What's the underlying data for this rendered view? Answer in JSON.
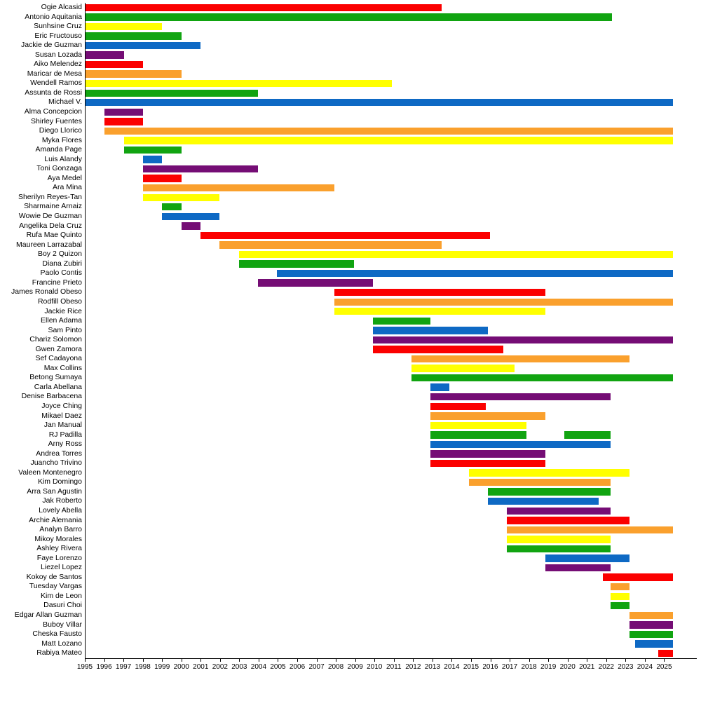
{
  "chart_data": {
    "type": "bar",
    "subtype": "timeline_gantt",
    "title": "",
    "xlabel": "",
    "ylabel": "",
    "grid": false,
    "legend": "none",
    "domain": [
      1995,
      2026.69
    ],
    "present_end": 2025.65,
    "year_ticks": [
      1995,
      1996,
      1997,
      1998,
      1999,
      2000,
      2001,
      2002,
      2003,
      2004,
      2005,
      2006,
      2007,
      2008,
      2009,
      2010,
      2011,
      2012,
      2013,
      2014,
      2015,
      2016,
      2017,
      2018,
      2019,
      2020,
      2021,
      2022,
      2023,
      2024,
      2025
    ],
    "colors": {
      "red": "#FB0000",
      "orange": "#FAA02D",
      "yellow": "#FFFF00",
      "green": "#11A411",
      "blue": "#0E69C4",
      "purple": "#750D75"
    },
    "members": [
      {
        "name": "Ogie Alcasid",
        "color": "red",
        "segments": [
          [
            1995,
            2013.6
          ]
        ]
      },
      {
        "name": "Antonio Aquitania",
        "color": "green",
        "segments": [
          [
            1995,
            2022.5
          ]
        ]
      },
      {
        "name": "Sunhsine Cruz",
        "color": "yellow",
        "segments": [
          [
            1995,
            1999
          ]
        ]
      },
      {
        "name": "Eric Fructouso",
        "color": "green",
        "segments": [
          [
            1995,
            2000
          ]
        ]
      },
      {
        "name": "Jackie de Guzman",
        "color": "blue",
        "segments": [
          [
            1995,
            2001
          ]
        ]
      },
      {
        "name": "Susan Lozada",
        "color": "purple",
        "segments": [
          [
            1995,
            1997
          ]
        ]
      },
      {
        "name": "Aiko Melendez",
        "color": "red",
        "segments": [
          [
            1995,
            1998
          ]
        ]
      },
      {
        "name": "Maricar de Mesa",
        "color": "orange",
        "segments": [
          [
            1995,
            2000
          ]
        ]
      },
      {
        "name": "Wendell Ramos",
        "color": "yellow",
        "segments": [
          [
            1995,
            2011
          ]
        ]
      },
      {
        "name": "Assunta de Rossi",
        "color": "green",
        "segments": [
          [
            1995,
            2004
          ]
        ]
      },
      {
        "name": "Michael V.",
        "color": "blue",
        "segments": [
          [
            1995,
            "present"
          ]
        ]
      },
      {
        "name": "Alma Concepcion",
        "color": "purple",
        "segments": [
          [
            1996,
            1998
          ]
        ]
      },
      {
        "name": "Shirley Fuentes",
        "color": "red",
        "segments": [
          [
            1996,
            1998
          ]
        ]
      },
      {
        "name": "Diego Llorico",
        "color": "orange",
        "segments": [
          [
            1996,
            "present"
          ]
        ]
      },
      {
        "name": "Myka Flores",
        "color": "yellow",
        "segments": [
          [
            1997,
            "present"
          ]
        ]
      },
      {
        "name": "Amanda Page",
        "color": "green",
        "segments": [
          [
            1997,
            2000
          ]
        ]
      },
      {
        "name": "Luis Alandy",
        "color": "blue",
        "segments": [
          [
            1998,
            1999
          ]
        ]
      },
      {
        "name": "Toni Gonzaga",
        "color": "purple",
        "segments": [
          [
            1998,
            2004
          ]
        ]
      },
      {
        "name": "Aya Medel",
        "color": "red",
        "segments": [
          [
            1998,
            2000
          ]
        ]
      },
      {
        "name": "Ara Mina",
        "color": "orange",
        "segments": [
          [
            1998,
            2008
          ]
        ]
      },
      {
        "name": "Sherilyn Reyes-Tan",
        "color": "yellow",
        "segments": [
          [
            1998,
            2002
          ]
        ]
      },
      {
        "name": "Sharmaine Arnaiz",
        "color": "green",
        "segments": [
          [
            1999,
            2000
          ]
        ]
      },
      {
        "name": "Wowie De Guzman",
        "color": "blue",
        "segments": [
          [
            1999,
            2002
          ]
        ]
      },
      {
        "name": "Angelika Dela Cruz",
        "color": "purple",
        "segments": [
          [
            2000,
            2001
          ]
        ]
      },
      {
        "name": "Rufa Mae Quinto",
        "color": "red",
        "segments": [
          [
            2001,
            2016.1
          ]
        ]
      },
      {
        "name": "Maureen Larrazabal",
        "color": "orange",
        "segments": [
          [
            2002,
            2013.6
          ]
        ]
      },
      {
        "name": "Boy 2 Quizon",
        "color": "yellow",
        "segments": [
          [
            2003,
            "present"
          ]
        ]
      },
      {
        "name": "Diana Zubiri",
        "color": "green",
        "segments": [
          [
            2003,
            2009
          ]
        ]
      },
      {
        "name": "Paolo Contis",
        "color": "blue",
        "segments": [
          [
            2005,
            "present"
          ]
        ]
      },
      {
        "name": "Francine Prieto",
        "color": "purple",
        "segments": [
          [
            2004,
            2010
          ]
        ]
      },
      {
        "name": "James Ronald Obeso",
        "color": "red",
        "segments": [
          [
            2008,
            2019
          ]
        ]
      },
      {
        "name": "Rodfill Obeso",
        "color": "orange",
        "segments": [
          [
            2008,
            "present"
          ]
        ]
      },
      {
        "name": "Jackie Rice",
        "color": "yellow",
        "segments": [
          [
            2008,
            2019
          ]
        ]
      },
      {
        "name": "Ellen Adama",
        "color": "green",
        "segments": [
          [
            2010,
            2013
          ]
        ]
      },
      {
        "name": "Sam Pinto",
        "color": "blue",
        "segments": [
          [
            2010,
            2016
          ]
        ]
      },
      {
        "name": "Chariz Solomon",
        "color": "purple",
        "segments": [
          [
            2010,
            "present"
          ]
        ]
      },
      {
        "name": "Gwen Zamora",
        "color": "red",
        "segments": [
          [
            2010,
            2016.8
          ]
        ]
      },
      {
        "name": "Sef Cadayona",
        "color": "orange",
        "segments": [
          [
            2012,
            2023.4
          ]
        ]
      },
      {
        "name": "Max Collins",
        "color": "yellow",
        "segments": [
          [
            2012,
            2017.4
          ]
        ]
      },
      {
        "name": "Betong Sumaya",
        "color": "green",
        "segments": [
          [
            2012,
            "present"
          ]
        ]
      },
      {
        "name": "Carla Abellana",
        "color": "blue",
        "segments": [
          [
            2013,
            2014
          ]
        ]
      },
      {
        "name": "Denise Barbacena",
        "color": "purple",
        "segments": [
          [
            2013,
            2022.4
          ]
        ]
      },
      {
        "name": "Joyce Ching",
        "color": "red",
        "segments": [
          [
            2013,
            2015.9
          ]
        ]
      },
      {
        "name": "Mikael Daez",
        "color": "orange",
        "segments": [
          [
            2013,
            2019
          ]
        ]
      },
      {
        "name": "Jan Manual",
        "color": "yellow",
        "segments": [
          [
            2013,
            2018
          ]
        ]
      },
      {
        "name": "RJ Padilla",
        "color": "green",
        "segments": [
          [
            2013,
            2018
          ],
          [
            2020,
            2022.4
          ]
        ]
      },
      {
        "name": "Arny Ross",
        "color": "blue",
        "segments": [
          [
            2013,
            2022.4
          ]
        ]
      },
      {
        "name": "Andrea Torres",
        "color": "purple",
        "segments": [
          [
            2013,
            2019
          ]
        ]
      },
      {
        "name": "Juancho Trivino",
        "color": "red",
        "segments": [
          [
            2013,
            2019
          ]
        ]
      },
      {
        "name": "Valeen Montenegro",
        "color": "yellow",
        "segments": [
          [
            2015,
            2023.4
          ]
        ]
      },
      {
        "name": "Kim Domingo",
        "color": "orange",
        "segments": [
          [
            2015,
            2022.4
          ]
        ]
      },
      {
        "name": "Arra San Agustin",
        "color": "green",
        "segments": [
          [
            2016,
            2022.4
          ]
        ]
      },
      {
        "name": "Jak Roberto",
        "color": "blue",
        "segments": [
          [
            2016,
            2021.8
          ]
        ]
      },
      {
        "name": "Lovely Abella",
        "color": "purple",
        "segments": [
          [
            2017,
            2022.4
          ]
        ]
      },
      {
        "name": "Archie Alemania",
        "color": "red",
        "segments": [
          [
            2017,
            2023.4
          ]
        ]
      },
      {
        "name": "Analyn Barro",
        "color": "orange",
        "segments": [
          [
            2017,
            "present"
          ]
        ]
      },
      {
        "name": "Mikoy Morales",
        "color": "yellow",
        "segments": [
          [
            2017,
            2022.4
          ]
        ]
      },
      {
        "name": "Ashley Rivera",
        "color": "green",
        "segments": [
          [
            2017,
            2022.4
          ]
        ]
      },
      {
        "name": "Faye Lorenzo",
        "color": "blue",
        "segments": [
          [
            2019,
            2023.4
          ]
        ]
      },
      {
        "name": "Liezel Lopez",
        "color": "purple",
        "segments": [
          [
            2019,
            2022.4
          ]
        ]
      },
      {
        "name": "Kokoy de Santos",
        "color": "red",
        "segments": [
          [
            2022,
            "present"
          ]
        ]
      },
      {
        "name": "Tuesday Vargas",
        "color": "orange",
        "segments": [
          [
            2022.4,
            2023.4
          ]
        ]
      },
      {
        "name": "Kim de Leon",
        "color": "yellow",
        "segments": [
          [
            2022.4,
            2023.4
          ]
        ]
      },
      {
        "name": "Dasuri Choi",
        "color": "green",
        "segments": [
          [
            2022.4,
            2023.4
          ]
        ]
      },
      {
        "name": "Edgar Allan Guzman",
        "color": "orange",
        "segments": [
          [
            2023.4,
            "present"
          ]
        ]
      },
      {
        "name": "Buboy Villar",
        "color": "purple",
        "segments": [
          [
            2023.4,
            "present"
          ]
        ]
      },
      {
        "name": "Cheska Fausto",
        "color": "green",
        "segments": [
          [
            2023.4,
            "present"
          ]
        ]
      },
      {
        "name": "Matt Lozano",
        "color": "blue",
        "segments": [
          [
            2023.7,
            "present"
          ]
        ]
      },
      {
        "name": "Rabiya Mateo",
        "color": "red",
        "segments": [
          [
            2024.9,
            "present"
          ]
        ]
      }
    ]
  }
}
